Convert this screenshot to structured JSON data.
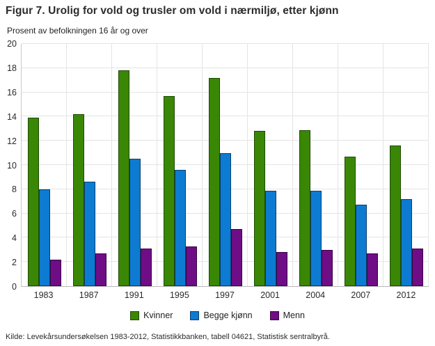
{
  "chart": {
    "title": "Figur 7. Urolig for vold og trusler om vold i nærmiljø, etter kjønn",
    "subtitle": "Prosent av befolkningen 16 år og over",
    "source": "Kilde: Levekårsundersøkelsen 1983-2012, Statistikkbanken, tabell 04621, Statistisk sentralbyrå."
  },
  "chart_data": {
    "type": "bar",
    "categories": [
      "1983",
      "1987",
      "1991",
      "1995",
      "1997",
      "2001",
      "2004",
      "2007",
      "2012"
    ],
    "series": [
      {
        "name": "Kvinner",
        "color": "#3a8705",
        "border": "#1d4a02",
        "values": [
          13.9,
          14.2,
          17.8,
          15.7,
          17.2,
          12.8,
          12.9,
          10.7,
          11.6
        ]
      },
      {
        "name": "Begge kjønn",
        "color": "#0d7bd1",
        "border": "#0a3f6e",
        "values": [
          8.0,
          8.6,
          10.5,
          9.6,
          11.0,
          7.9,
          7.9,
          6.7,
          7.2
        ]
      },
      {
        "name": "Menn",
        "color": "#6f0d86",
        "border": "#380545",
        "values": [
          2.2,
          2.7,
          3.1,
          3.3,
          4.7,
          2.8,
          3.0,
          2.7,
          3.1
        ]
      }
    ],
    "title": "Figur 7. Urolig for vold og trusler om vold i nærmiljø, etter kjønn",
    "xlabel": "",
    "ylabel": "Prosent av befolkningen 16 år og over",
    "ylim": [
      0,
      20
    ],
    "ytick_step": 2,
    "grid": true,
    "legend_position": "bottom"
  }
}
